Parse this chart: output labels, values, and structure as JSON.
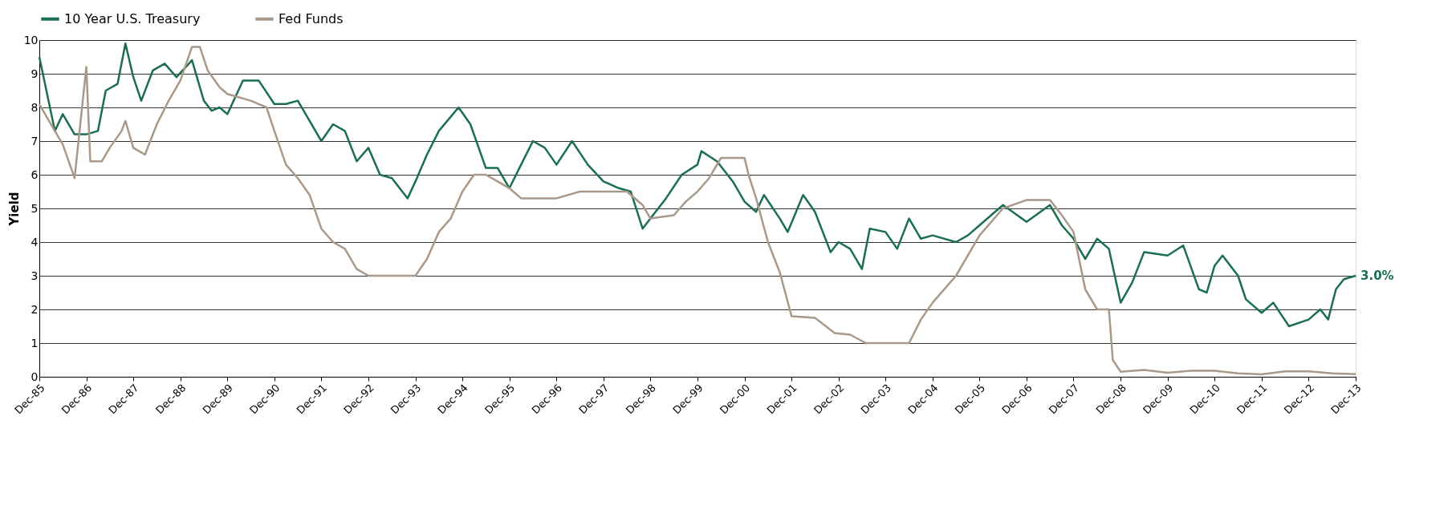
{
  "chart_data": {
    "type": "line",
    "ylabel": "Yield",
    "legend": "top",
    "grid": "y",
    "line_style": "solid",
    "marker": "none",
    "xlim": [
      "1985-12",
      "2013-12"
    ],
    "xticks": [
      {
        "value": "1985-12",
        "label": "Dec-85"
      },
      {
        "value": "1986-12",
        "label": "Dec-86"
      },
      {
        "value": "1987-12",
        "label": "Dec-87"
      },
      {
        "value": "1988-12",
        "label": "Dec-88"
      },
      {
        "value": "1989-12",
        "label": "Dec-89"
      },
      {
        "value": "1990-12",
        "label": "Dec-90"
      },
      {
        "value": "1991-12",
        "label": "Dec-91"
      },
      {
        "value": "1992-12",
        "label": "Dec-92"
      },
      {
        "value": "1993-12",
        "label": "Dec-93"
      },
      {
        "value": "1994-12",
        "label": "Dec-94"
      },
      {
        "value": "1995-12",
        "label": "Dec-95"
      },
      {
        "value": "1996-12",
        "label": "Dec-96"
      },
      {
        "value": "1997-12",
        "label": "Dec-97"
      },
      {
        "value": "1998-12",
        "label": "Dec-98"
      },
      {
        "value": "1999-12",
        "label": "Dec-99"
      },
      {
        "value": "2000-12",
        "label": "Dec-00"
      },
      {
        "value": "2001-12",
        "label": "Dec-01"
      },
      {
        "value": "2002-12",
        "label": "Dec-02"
      },
      {
        "value": "2003-12",
        "label": "Dec-03"
      },
      {
        "value": "2004-12",
        "label": "Dec-04"
      },
      {
        "value": "2005-12",
        "label": "Dec-05"
      },
      {
        "value": "2006-12",
        "label": "Dec-06"
      },
      {
        "value": "2007-12",
        "label": "Dec-07"
      },
      {
        "value": "2008-12",
        "label": "Dec-08"
      },
      {
        "value": "2009-12",
        "label": "Dec-09"
      },
      {
        "value": "2010-12",
        "label": "Dec-10"
      },
      {
        "value": "2011-12",
        "label": "Dec-11"
      },
      {
        "value": "2012-12",
        "label": "Dec-12"
      },
      {
        "value": "2013-12",
        "label": "Dec-13"
      }
    ],
    "ylim": [
      0,
      10
    ],
    "yticks": [
      0,
      1,
      2,
      3,
      4,
      5,
      6,
      7,
      8,
      9,
      10
    ],
    "annotations": [
      {
        "text": "3.0%",
        "x": "2013-12",
        "y": 3.0
      }
    ],
    "series": [
      {
        "name": "10 Year U.S. Treasury",
        "color": "#1b6e50",
        "x": [
          "1985-12",
          "1986-04",
          "1986-06",
          "1986-09",
          "1986-12",
          "1987-03",
          "1987-05",
          "1987-08",
          "1987-10",
          "1987-12",
          "1988-02",
          "1988-05",
          "1988-08",
          "1988-11",
          "1989-03",
          "1989-06",
          "1989-08",
          "1989-10",
          "1989-12",
          "1990-04",
          "1990-08",
          "1990-12",
          "1991-03",
          "1991-06",
          "1991-09",
          "1991-12",
          "1992-03",
          "1992-06",
          "1992-09",
          "1992-12",
          "1993-03",
          "1993-06",
          "1993-10",
          "1993-12",
          "1994-03",
          "1994-06",
          "1994-11",
          "1995-02",
          "1995-06",
          "1995-09",
          "1995-12",
          "1996-03",
          "1996-06",
          "1996-09",
          "1996-12",
          "1997-04",
          "1997-08",
          "1997-12",
          "1998-04",
          "1998-07",
          "1998-10",
          "1998-12",
          "1999-04",
          "1999-08",
          "1999-12",
          "2000-01",
          "2000-05",
          "2000-09",
          "2000-12",
          "2001-03",
          "2001-05",
          "2001-09",
          "2001-11",
          "2002-03",
          "2002-06",
          "2002-10",
          "2002-12",
          "2003-03",
          "2003-06",
          "2003-08",
          "2003-12",
          "2004-03",
          "2004-06",
          "2004-09",
          "2004-12",
          "2005-06",
          "2005-09",
          "2005-12",
          "2006-06",
          "2006-12",
          "2007-06",
          "2007-09",
          "2007-12",
          "2008-03",
          "2008-06",
          "2008-09",
          "2008-12",
          "2009-03",
          "2009-06",
          "2009-12",
          "2010-04",
          "2010-08",
          "2010-10",
          "2010-12",
          "2011-02",
          "2011-06",
          "2011-08",
          "2011-12",
          "2012-03",
          "2012-07",
          "2012-12",
          "2013-03",
          "2013-05",
          "2013-07",
          "2013-09",
          "2013-12"
        ],
        "values": [
          9.5,
          7.3,
          7.8,
          7.2,
          7.2,
          7.3,
          8.5,
          8.7,
          9.9,
          8.9,
          8.2,
          9.1,
          9.3,
          8.9,
          9.4,
          8.2,
          7.9,
          8.0,
          7.8,
          8.8,
          8.8,
          8.1,
          8.1,
          8.2,
          7.6,
          7.0,
          7.5,
          7.3,
          6.4,
          6.8,
          6.0,
          5.9,
          5.3,
          5.8,
          6.6,
          7.3,
          8.0,
          7.5,
          6.2,
          6.2,
          5.6,
          6.3,
          7.0,
          6.8,
          6.3,
          7.0,
          6.3,
          5.8,
          5.6,
          5.5,
          4.4,
          4.7,
          5.3,
          6.0,
          6.3,
          6.7,
          6.4,
          5.8,
          5.2,
          4.9,
          5.4,
          4.7,
          4.3,
          5.4,
          4.9,
          3.7,
          4.0,
          3.8,
          3.2,
          4.4,
          4.3,
          3.8,
          4.7,
          4.1,
          4.2,
          4.0,
          4.2,
          4.5,
          5.1,
          4.6,
          5.1,
          4.5,
          4.1,
          3.5,
          4.1,
          3.8,
          2.2,
          2.8,
          3.7,
          3.6,
          3.9,
          2.6,
          2.5,
          3.3,
          3.6,
          3.0,
          2.3,
          1.9,
          2.2,
          1.5,
          1.7,
          2.0,
          1.7,
          2.6,
          2.9,
          3.0
        ]
      },
      {
        "name": "Fed Funds",
        "color": "#a8998a",
        "x": [
          "1985-12",
          "1986-03",
          "1986-06",
          "1986-09",
          "1986-12",
          "1987-01",
          "1987-04",
          "1987-06",
          "1987-09",
          "1987-10",
          "1987-12",
          "1988-03",
          "1988-06",
          "1988-09",
          "1988-12",
          "1989-03",
          "1989-05",
          "1989-07",
          "1989-10",
          "1989-12",
          "1990-06",
          "1990-10",
          "1990-12",
          "1991-03",
          "1991-06",
          "1991-09",
          "1991-12",
          "1992-03",
          "1992-06",
          "1992-09",
          "1992-12",
          "1993-06",
          "1993-12",
          "1994-03",
          "1994-06",
          "1994-09",
          "1994-12",
          "1995-03",
          "1995-06",
          "1995-09",
          "1995-12",
          "1996-03",
          "1996-12",
          "1997-06",
          "1997-12",
          "1998-06",
          "1998-10",
          "1998-12",
          "1999-06",
          "1999-09",
          "1999-12",
          "2000-03",
          "2000-06",
          "2000-12",
          "2001-01",
          "2001-03",
          "2001-06",
          "2001-09",
          "2001-12",
          "2002-06",
          "2002-11",
          "2003-03",
          "2003-07",
          "2003-12",
          "2004-06",
          "2004-09",
          "2004-12",
          "2005-06",
          "2005-12",
          "2006-06",
          "2006-12",
          "2007-06",
          "2007-09",
          "2007-12",
          "2008-03",
          "2008-06",
          "2008-09",
          "2008-10",
          "2008-12",
          "2009-06",
          "2009-12",
          "2010-06",
          "2010-12",
          "2011-06",
          "2011-12",
          "2012-06",
          "2012-12",
          "2013-06",
          "2013-12"
        ],
        "values": [
          8.1,
          7.5,
          6.9,
          5.9,
          9.2,
          6.4,
          6.4,
          6.8,
          7.3,
          7.6,
          6.8,
          6.6,
          7.5,
          8.2,
          8.8,
          9.8,
          9.8,
          9.1,
          8.6,
          8.4,
          8.2,
          8.0,
          7.3,
          6.3,
          5.9,
          5.4,
          4.4,
          4.0,
          3.8,
          3.2,
          3.0,
          3.0,
          3.0,
          3.5,
          4.3,
          4.7,
          5.5,
          6.0,
          6.0,
          5.8,
          5.6,
          5.3,
          5.3,
          5.5,
          5.5,
          5.5,
          5.1,
          4.7,
          4.8,
          5.2,
          5.5,
          5.9,
          6.5,
          6.5,
          6.0,
          5.3,
          4.0,
          3.1,
          1.8,
          1.75,
          1.3,
          1.25,
          1.0,
          1.0,
          1.0,
          1.7,
          2.2,
          3.0,
          4.2,
          5.0,
          5.25,
          5.25,
          4.8,
          4.3,
          2.6,
          2.0,
          2.0,
          0.5,
          0.15,
          0.2,
          0.12,
          0.18,
          0.18,
          0.1,
          0.07,
          0.16,
          0.16,
          0.1,
          0.08
        ]
      }
    ]
  }
}
